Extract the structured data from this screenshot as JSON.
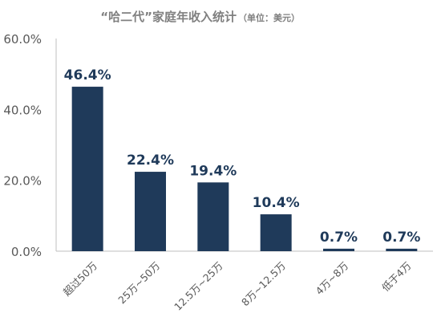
{
  "chart_data": {
    "type": "bar",
    "title": "“哈二代”家庭年收入统计",
    "subtitle": "（单位：美元）",
    "categories": [
      "超过50万",
      "25万~50万",
      "12.5万~25万",
      "8万~12.5万",
      "4万~8万",
      "低于4万"
    ],
    "values": [
      46.4,
      22.4,
      19.4,
      10.4,
      0.7,
      0.7
    ],
    "data_labels": [
      "46.4%",
      "22.4%",
      "19.4%",
      "10.4%",
      "0.7%",
      "0.7%"
    ],
    "y_ticks": [
      "0.0%",
      "20.0%",
      "40.0%",
      "60.0%"
    ],
    "y_tick_values": [
      0,
      20,
      40,
      60
    ],
    "xlabel": "",
    "ylabel": "",
    "ylim": [
      0,
      60
    ],
    "grid": false,
    "legend": "none",
    "bar_color": "#1f3a5a"
  }
}
